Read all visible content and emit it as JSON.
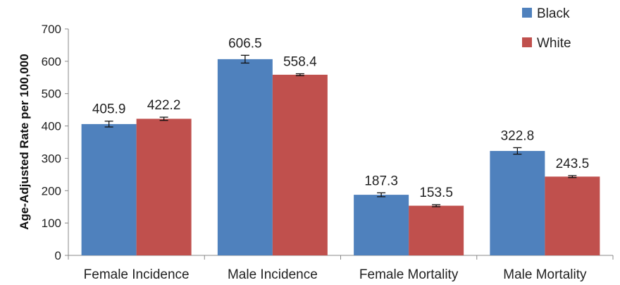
{
  "chart_data": {
    "type": "bar",
    "title": "",
    "xlabel": "",
    "ylabel": "Age-Adjusted Rate per 100,000",
    "ylim": [
      0,
      700
    ],
    "yticks": [
      0,
      100,
      200,
      300,
      400,
      500,
      600,
      700
    ],
    "grid": false,
    "legend_position": "top-right",
    "error_bars": true,
    "categories": [
      "Female Incidence",
      "Male Incidence",
      "Female Mortality",
      "Male Mortality"
    ],
    "series": [
      {
        "name": "Black",
        "color": "#4f81bd",
        "values": [
          405.9,
          606.5,
          187.3,
          322.8
        ],
        "error": [
          9,
          12,
          6,
          10
        ]
      },
      {
        "name": "White",
        "color": "#c0504d",
        "values": [
          422.2,
          558.4,
          153.5,
          243.5
        ],
        "error": [
          5,
          3,
          3,
          3
        ]
      }
    ]
  }
}
